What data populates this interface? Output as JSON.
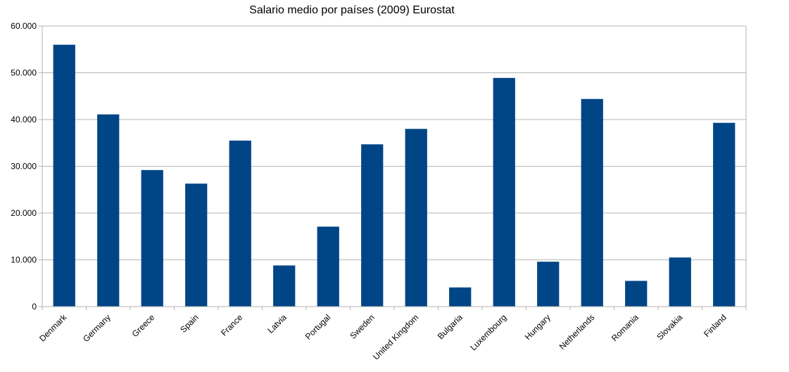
{
  "chart_data": {
    "type": "bar",
    "title": "Salario medio por países (2009) Eurostat",
    "xlabel": "",
    "ylabel": "",
    "categories": [
      "Denmark",
      "Germany",
      "Greece",
      "Spain",
      "France",
      "Latvia",
      "Portugal",
      "Sweden",
      "United Kingdom",
      "Bulgaria",
      "Luxembourg",
      "Hungary",
      "Netherlands",
      "Romania",
      "Slovakia",
      "Finland"
    ],
    "values": [
      56000,
      41100,
      29200,
      26300,
      35500,
      8800,
      17100,
      34700,
      38000,
      4100,
      48900,
      9600,
      44400,
      5500,
      10500,
      39300
    ],
    "ylim": [
      0,
      60000
    ],
    "yticks": [
      0,
      10000,
      20000,
      30000,
      40000,
      50000,
      60000
    ],
    "ytick_labels": [
      "0",
      "10.000",
      "20.000",
      "30.000",
      "40.000",
      "50.000",
      "60.000"
    ],
    "grid": true,
    "legend": "none",
    "bar_color": "#004586"
  }
}
